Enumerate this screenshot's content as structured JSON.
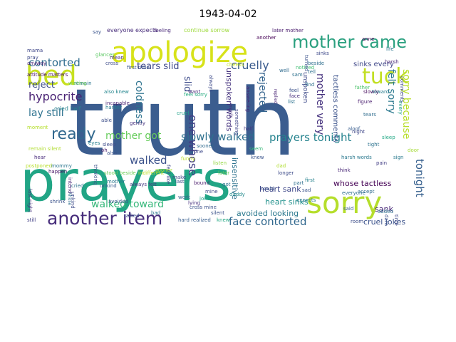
{
  "title": "1943-04-02",
  "words": [
    {
      "text": "truth",
      "color": "#3b5d8f"
    },
    {
      "text": "prayers",
      "color": "#21a585"
    },
    {
      "text": "apologize",
      "color": "#d7e219"
    },
    {
      "text": "bed",
      "color": "#c7e020"
    },
    {
      "text": "mother came",
      "color": "#2aa07f"
    },
    {
      "text": "tuck",
      "color": "#c2df23"
    },
    {
      "text": "sorry",
      "color": "#b5de2b"
    },
    {
      "text": "another item",
      "color": "#472d7b"
    },
    {
      "text": "ready",
      "color": "#31688e"
    },
    {
      "text": "contorted",
      "color": "#2e6c8e"
    },
    {
      "text": "hypocrite",
      "color": "#482173"
    },
    {
      "text": "reject",
      "color": "#3c4f8a"
    },
    {
      "text": "lay still",
      "color": "#2c718e"
    },
    {
      "text": "tears slid",
      "color": "#3e4989"
    },
    {
      "text": "cruelly",
      "color": "#38598c"
    },
    {
      "text": "mother got",
      "color": "#67cc5c"
    },
    {
      "text": "slowly walked",
      "color": "#2d708e"
    },
    {
      "text": "prayers tonight",
      "color": "#25838e"
    },
    {
      "text": "walked toward",
      "color": "#35b779"
    },
    {
      "text": "walked",
      "color": "#3b528b"
    },
    {
      "text": "face contorted",
      "color": "#31688e"
    },
    {
      "text": "felt sorry",
      "color": "#2a788e"
    },
    {
      "text": "sorry because",
      "color": "#b8de29"
    },
    {
      "text": "tonight",
      "color": "#355f8d"
    },
    {
      "text": "mother very",
      "color": "#46327e"
    },
    {
      "text": "rejected",
      "color": "#33638d"
    },
    {
      "text": "slid",
      "color": "#3e4c8a"
    },
    {
      "text": "coldness",
      "color": "#2c728e"
    },
    {
      "text": "one whose",
      "color": "#433e85"
    },
    {
      "text": "heart sank",
      "color": "#3f4889"
    },
    {
      "text": "whose tactless",
      "color": "#440154"
    },
    {
      "text": "avoided looking",
      "color": "#2a788e"
    },
    {
      "text": "cruel jokes",
      "color": "#3b528b"
    },
    {
      "text": "heart sinks",
      "color": "#21918c"
    },
    {
      "text": "sank",
      "color": "#482878"
    },
    {
      "text": "insensitive",
      "color": "#2c728e"
    },
    {
      "text": "unspoken words",
      "color": "#46337f"
    },
    {
      "text": "unspoken",
      "color": "#3e4a89"
    },
    {
      "text": "tactless comments",
      "color": "#3b528b"
    },
    {
      "text": "sinks every",
      "color": "#3f4788"
    },
    {
      "text": "everyone expects",
      "color": "#472c7a"
    },
    {
      "text": "continue sorrow",
      "color": "#9dd93b"
    },
    {
      "text": "later mother",
      "color": "#481a6c"
    },
    {
      "text": "cried half",
      "color": "#26828e"
    },
    {
      "text": "first time",
      "color": "#3a548c"
    },
    {
      "text": "also knew",
      "color": "#24868e"
    },
    {
      "text": "attitude matters",
      "color": "#471063"
    },
    {
      "text": "always felt",
      "color": "#453781"
    },
    {
      "text": "remain silent",
      "color": "#b0dd2f"
    },
    {
      "text": "cross mine",
      "color": "#3b528b"
    },
    {
      "text": "harsh words",
      "color": "#2a788e"
    },
    {
      "text": "feel sorry",
      "color": "#27ad81"
    },
    {
      "text": "feel like",
      "color": "#3f4788"
    },
    {
      "text": "stood beside",
      "color": "#6ece58"
    },
    {
      "text": "last night",
      "color": "#46307e"
    },
    {
      "text": "whose",
      "color": "#2e6f8e"
    },
    {
      "text": "glances",
      "color": "#5cc863"
    },
    {
      "text": "incapable",
      "color": "#481f70"
    },
    {
      "text": "cruel",
      "color": "#1fa188"
    },
    {
      "text": "harder",
      "color": "#297b8e"
    },
    {
      "text": "indifferent",
      "color": "#bddf26"
    },
    {
      "text": "replied",
      "color": "#482475"
    },
    {
      "text": "noticed",
      "color": "#40bd72"
    },
    {
      "text": "figure",
      "color": "#481b6d"
    },
    {
      "text": "slowly",
      "color": "#460a5d"
    },
    {
      "text": "father",
      "color": "#4ec36b"
    },
    {
      "text": "tears",
      "color": "#2f6c8e"
    },
    {
      "text": "aloof",
      "color": "#365c8d"
    },
    {
      "text": "sleep",
      "color": "#22a884"
    },
    {
      "text": "night",
      "color": "#3f4788"
    },
    {
      "text": "pain",
      "color": "#433e85"
    },
    {
      "text": "door",
      "color": "#a5db36"
    },
    {
      "text": "sign",
      "color": "#29798e"
    },
    {
      "text": "every",
      "color": "#1f9e89"
    },
    {
      "text": "anne",
      "color": "#440256"
    },
    {
      "text": "life",
      "color": "#2b748e"
    },
    {
      "text": "harsh",
      "color": "#482677"
    },
    {
      "text": "toward",
      "color": "#297b8e"
    },
    {
      "text": "comments",
      "color": "#3e4989"
    },
    {
      "text": "accept",
      "color": "#2f6b8e"
    },
    {
      "text": "sam",
      "color": "#2d718e"
    },
    {
      "text": "listen",
      "color": "#93d741"
    },
    {
      "text": "later",
      "color": "#6ccd5a"
    },
    {
      "text": "bound",
      "color": "#481769"
    },
    {
      "text": "daddy",
      "color": "#238a8d"
    },
    {
      "text": "mine",
      "color": "#3e4a89"
    },
    {
      "text": "lying",
      "color": "#46327e"
    },
    {
      "text": "jokes",
      "color": "#1fa188"
    },
    {
      "text": "silent",
      "color": "#3b528b"
    },
    {
      "text": "knew",
      "color": "#22a884"
    },
    {
      "text": "hard realized",
      "color": "#365d8d"
    },
    {
      "text": "avoided",
      "color": "#3a548c"
    },
    {
      "text": "cried",
      "color": "#2c718e"
    },
    {
      "text": "happen",
      "color": "#481467"
    },
    {
      "text": "postponed",
      "color": "#b8de29"
    },
    {
      "text": "shrink",
      "color": "#3b528b"
    },
    {
      "text": "still",
      "color": "#424086"
    },
    {
      "text": "hear",
      "color": "#472a7a"
    },
    {
      "text": "mommy",
      "color": "#2a768e"
    },
    {
      "text": "intend",
      "color": "#482878"
    },
    {
      "text": "unkind",
      "color": "#3e4c8a"
    },
    {
      "text": "eyes",
      "color": "#26818e"
    },
    {
      "text": "funny",
      "color": "#c0df25"
    },
    {
      "text": "talked",
      "color": "#3b528b"
    },
    {
      "text": "sad",
      "color": "#3a548c"
    },
    {
      "text": "first",
      "color": "#26828e"
    },
    {
      "text": "expects",
      "color": "#2a788e"
    },
    {
      "text": "part",
      "color": "#2e6f8e"
    },
    {
      "text": "think",
      "color": "#482576"
    },
    {
      "text": "said",
      "color": "#375a8c"
    },
    {
      "text": "everyone",
      "color": "#2e6e8e"
    },
    {
      "text": "added",
      "color": "#2d708e"
    },
    {
      "text": "room",
      "color": "#3d4e8a"
    },
    {
      "text": "dare",
      "color": "#3b518b"
    },
    {
      "text": "time",
      "color": "#3e4989"
    },
    {
      "text": "longer",
      "color": "#3e4c8a"
    },
    {
      "text": "sooner",
      "color": "#a8db34"
    },
    {
      "text": "got",
      "color": "#2c738e"
    },
    {
      "text": "last",
      "color": "#3b528b"
    },
    {
      "text": "make",
      "color": "#3f4889"
    },
    {
      "text": "work",
      "color": "#34618d"
    },
    {
      "text": "mother",
      "color": "#2a788e"
    },
    {
      "text": "also",
      "color": "#3b528b"
    },
    {
      "text": "say",
      "color": "#3a548c"
    },
    {
      "text": "words",
      "color": "#46327e"
    },
    {
      "text": "mean",
      "color": "#472f7d"
    },
    {
      "text": "cross",
      "color": "#3e4c8a"
    },
    {
      "text": "cheeks",
      "color": "#c2df23"
    },
    {
      "text": "remain",
      "color": "#2b758e"
    },
    {
      "text": "half",
      "color": "#453882"
    },
    {
      "text": "face",
      "color": "#472e7c"
    },
    {
      "text": "feel",
      "color": "#3b518b"
    },
    {
      "text": "find",
      "color": "#2d718e"
    },
    {
      "text": "list",
      "color": "#2c728e"
    },
    {
      "text": "sinks",
      "color": "#3e4989"
    },
    {
      "text": "well",
      "color": "#2f6b8e"
    },
    {
      "text": "want",
      "color": "#472c7a"
    },
    {
      "text": "always",
      "color": "#3e4a89"
    },
    {
      "text": "answering",
      "color": "#482475"
    },
    {
      "text": "something",
      "color": "#404688"
    },
    {
      "text": "turned",
      "color": "#3b528b"
    },
    {
      "text": "beside",
      "color": "#2e6e8e"
    },
    {
      "text": "tell",
      "color": "#2d708e"
    },
    {
      "text": "mama",
      "color": "#3f4788"
    },
    {
      "text": "pray",
      "color": "#3e4a89"
    },
    {
      "text": "anyway",
      "color": "#482173"
    },
    {
      "text": "waiting",
      "color": "#6ece58"
    },
    {
      "text": "moment",
      "color": "#b5de2b"
    },
    {
      "text": "able",
      "color": "#3d4e8a"
    },
    {
      "text": "gently",
      "color": "#46327e"
    },
    {
      "text": "thinking",
      "color": "#3b528b"
    },
    {
      "text": "unkind",
      "color": "#365c8d"
    },
    {
      "text": "another",
      "color": "#440154"
    },
    {
      "text": "bad",
      "color": "#2a788e"
    },
    {
      "text": "feeling",
      "color": "#482878"
    },
    {
      "text": "sleep",
      "color": "#3e4c8a"
    },
    {
      "text": "could",
      "color": "#3b528b"
    },
    {
      "text": "seem",
      "color": "#35b779"
    },
    {
      "text": "knew",
      "color": "#3a548c"
    },
    {
      "text": "tight",
      "color": "#2c728e"
    },
    {
      "text": "one",
      "color": "#3e4989"
    },
    {
      "text": "sooner",
      "color": "#2f6b8e"
    },
    {
      "text": "oh",
      "color": "#481a6c"
    },
    {
      "text": "dad",
      "color": "#b0dd2f"
    }
  ]
}
